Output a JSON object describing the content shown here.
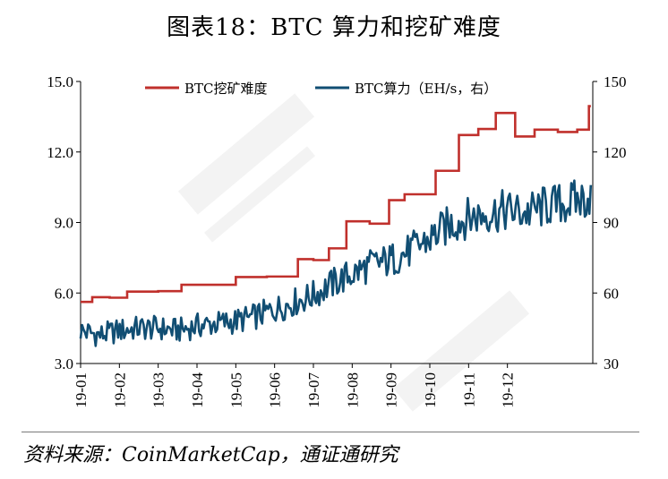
{
  "header": {
    "title": "图表18：BTC 算力和挖矿难度"
  },
  "footer": {
    "source": "资料来源：CoinMarketCap，通证通研究"
  },
  "chart_data": {
    "type": "line",
    "categories": [
      "19-01",
      "19-02",
      "19-03",
      "19-04",
      "19-05",
      "19-06",
      "19-07",
      "19-08",
      "19-09",
      "19-10",
      "19-11",
      "19-12"
    ],
    "y_left": {
      "ylim": [
        3.0,
        15.0
      ],
      "ticks": [
        "3.0",
        "6.0",
        "9.0",
        "12.0",
        "15.0"
      ]
    },
    "y_right": {
      "ylim": [
        30,
        150
      ],
      "ticks": [
        "30",
        "60",
        "90",
        "120",
        "150"
      ]
    },
    "grid": false,
    "legend_position": "top",
    "series": [
      {
        "name": "BTC挖矿难度",
        "axis": "left",
        "color": "#c0302c",
        "style": "step",
        "points": [
          [
            0.0,
            5.62
          ],
          [
            0.3,
            5.82
          ],
          [
            0.75,
            5.8
          ],
          [
            1.2,
            6.06
          ],
          [
            2.0,
            6.08
          ],
          [
            2.6,
            6.35
          ],
          [
            3.6,
            6.35
          ],
          [
            4.0,
            6.68
          ],
          [
            4.8,
            6.7
          ],
          [
            5.6,
            7.44
          ],
          [
            6.0,
            7.4
          ],
          [
            6.4,
            7.9
          ],
          [
            6.85,
            9.05
          ],
          [
            7.45,
            8.95
          ],
          [
            7.95,
            9.95
          ],
          [
            8.35,
            10.2
          ],
          [
            9.15,
            11.2
          ],
          [
            9.75,
            12.72
          ],
          [
            10.25,
            12.98
          ],
          [
            10.7,
            13.66
          ],
          [
            11.2,
            12.66
          ],
          [
            11.7,
            12.95
          ],
          [
            12.3,
            12.85
          ],
          [
            12.8,
            12.95
          ],
          [
            13.1,
            13.95
          ],
          [
            13.15,
            13.95
          ]
        ]
      },
      {
        "name": "BTC算力（EH/s，右）",
        "axis": "right",
        "color": "#114e73",
        "style": "line",
        "points": [
          [
            0.0,
            44
          ],
          [
            0.5,
            42
          ],
          [
            1.0,
            44
          ],
          [
            1.5,
            45
          ],
          [
            2.0,
            45
          ],
          [
            2.5,
            44
          ],
          [
            3.0,
            46
          ],
          [
            3.5,
            47
          ],
          [
            4.0,
            48
          ],
          [
            4.5,
            50
          ],
          [
            5.0,
            53
          ],
          [
            5.5,
            56
          ],
          [
            6.0,
            59
          ],
          [
            6.5,
            64
          ],
          [
            7.0,
            68
          ],
          [
            7.5,
            72
          ],
          [
            8.0,
            74
          ],
          [
            8.5,
            78
          ],
          [
            9.0,
            83
          ],
          [
            9.5,
            89
          ],
          [
            10.0,
            92
          ],
          [
            10.5,
            94
          ],
          [
            11.0,
            95
          ],
          [
            11.5,
            94
          ],
          [
            12.0,
            97
          ],
          [
            12.5,
            98
          ],
          [
            13.0,
            100
          ],
          [
            13.15,
            102
          ]
        ]
      }
    ]
  }
}
